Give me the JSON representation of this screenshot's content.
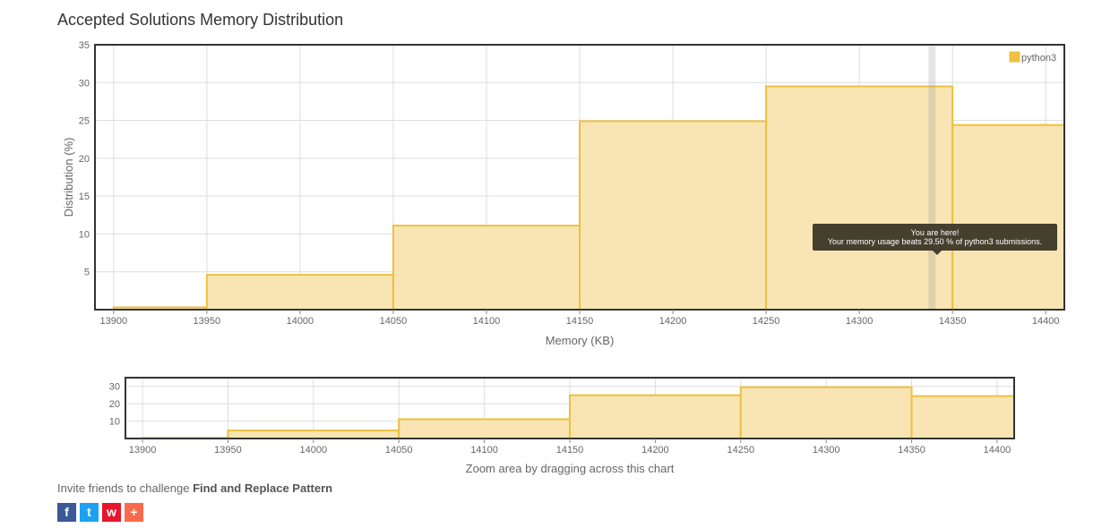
{
  "page": {
    "title": "Accepted Solutions Memory Distribution"
  },
  "chart_data": [
    {
      "type": "bar",
      "title": "Accepted Solutions Memory Distribution",
      "xlabel": "Memory (KB)",
      "ylabel": "Distribution (%)",
      "bins": [
        {
          "x0": 13900,
          "x1": 13950,
          "value": 0.3
        },
        {
          "x0": 13950,
          "x1": 14050,
          "value": 4.6
        },
        {
          "x0": 14050,
          "x1": 14150,
          "value": 11.1
        },
        {
          "x0": 14150,
          "x1": 14250,
          "value": 24.9
        },
        {
          "x0": 14250,
          "x1": 14350,
          "value": 29.5
        },
        {
          "x0": 14350,
          "x1": 14410,
          "value": 24.4
        }
      ],
      "xlim": [
        13890,
        14410
      ],
      "ylim": [
        0,
        35
      ],
      "x_ticks": [
        13900,
        13950,
        14000,
        14050,
        14100,
        14150,
        14200,
        14250,
        14300,
        14350,
        14400
      ],
      "y_ticks": [
        5,
        10,
        15,
        20,
        25,
        30,
        35
      ],
      "legend": [
        {
          "name": "python3",
          "color": "#f0c040"
        }
      ],
      "legend_position": "top-right",
      "marker_x": 14339,
      "grid": true,
      "tooltip": {
        "line1": "You are here!",
        "line2": "Your memory usage beats 29.50 % of python3 submissions."
      }
    },
    {
      "type": "bar",
      "caption": "Zoom area by dragging across this chart",
      "xlim": [
        13890,
        14410
      ],
      "ylim": [
        0,
        35
      ],
      "x_ticks": [
        13900,
        13950,
        14000,
        14050,
        14100,
        14150,
        14200,
        14250,
        14300,
        14350,
        14400
      ],
      "y_ticks": [
        10,
        20,
        30
      ],
      "grid": true
    }
  ],
  "colors": {
    "bar_fill": "#f8e5b3",
    "bar_stroke": "#ecc040",
    "border": "#333333",
    "grid": "#dddddd"
  },
  "invite": {
    "prefix": "Invite friends to challenge",
    "problem": "Find and Replace Pattern"
  },
  "share": [
    {
      "icon": "facebook-icon",
      "glyph": "f",
      "color": "#3b5998"
    },
    {
      "icon": "twitter-icon",
      "glyph": "t",
      "color": "#1da1f2"
    },
    {
      "icon": "weibo-icon",
      "glyph": "w",
      "color": "#e6162d"
    },
    {
      "icon": "plus-icon",
      "glyph": "+",
      "color": "#f96a4c"
    }
  ]
}
